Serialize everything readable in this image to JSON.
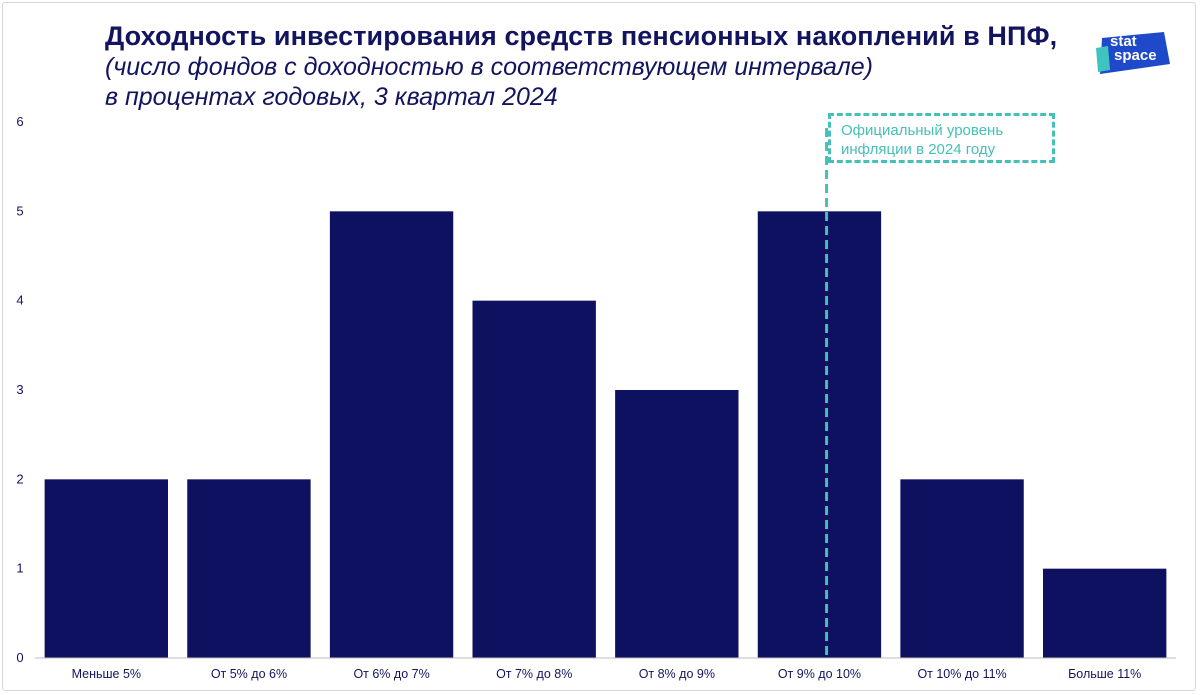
{
  "title": "Доходность инвестирования средств пенсионных накоплений в НПФ,",
  "subtitle_line1": "(число фондов с доходностью в соответствующем интервале)",
  "subtitle_line2": "в процентах годовых, 3 квартал 2024",
  "logo": {
    "line1": "stat",
    "line2": "space",
    "color": "#1e49c8",
    "accent": "#3fc3c0"
  },
  "annotation": {
    "line1": "Официальный уровень",
    "line2": "инфляции в 2024 году",
    "color": "#45bfb7"
  },
  "chart_data": {
    "type": "bar",
    "categories": [
      "Меньше 5%",
      "От 5% до 6%",
      "От 6% до 7%",
      "От 7% до 8%",
      "От 8% до 9%",
      "От 9% до 10%",
      "От 10% до 11%",
      "Больше 11%"
    ],
    "values": [
      2,
      2,
      5,
      4,
      3,
      5,
      2,
      1
    ],
    "ylim": [
      0,
      6
    ],
    "yticks": [
      0,
      1,
      2,
      3,
      4,
      5,
      6
    ],
    "bar_color": "#0e1060",
    "grid": false,
    "reference_line": {
      "category_index": 5,
      "position": 0.55
    }
  }
}
